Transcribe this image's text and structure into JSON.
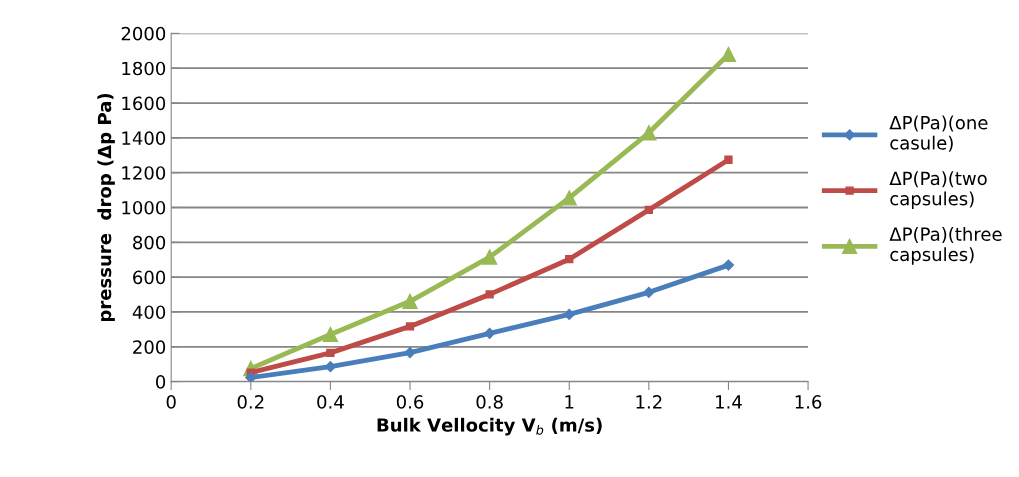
{
  "chart_data": {
    "type": "line",
    "xlabel": "Bulk Vellocity V$_{b}$ (m/s)",
    "ylabel": "pressure  drop (Δp Pa)",
    "xlim": [
      0,
      1.6
    ],
    "xticks": [
      0,
      0.2,
      0.4,
      0.6,
      0.8,
      1,
      1.2,
      1.4,
      1.6
    ],
    "ylim": [
      0,
      2000
    ],
    "yticks": [
      0,
      200,
      400,
      600,
      800,
      1000,
      1200,
      1400,
      1600,
      1800,
      2000
    ],
    "grid": "y",
    "legend": "right",
    "line_style": "solid",
    "series": [
      {
        "name": "ΔP(Pa)(one casule)",
        "color": "#4a7ebb",
        "marker": "diamond",
        "x": [
          0.2,
          0.4,
          0.6,
          0.8,
          1,
          1.2,
          1.4
        ],
        "values": [
          23,
          86,
          167,
          277,
          386,
          513,
          669
        ]
      },
      {
        "name": "ΔP(Pa)(two capsules)",
        "color": "#be4b48",
        "marker": "square",
        "x": [
          0.2,
          0.4,
          0.6,
          0.8,
          1,
          1.2,
          1.4
        ],
        "values": [
          52,
          165,
          317,
          501,
          703,
          986,
          1274
        ]
      },
      {
        "name": "ΔP(Pa)(three capsules)",
        "color": "#98b954",
        "marker": "triangle",
        "x": [
          0.2,
          0.4,
          0.6,
          0.8,
          1,
          1.2,
          1.4
        ],
        "values": [
          75,
          271,
          461,
          715,
          1055,
          1429,
          1879
        ]
      }
    ]
  }
}
